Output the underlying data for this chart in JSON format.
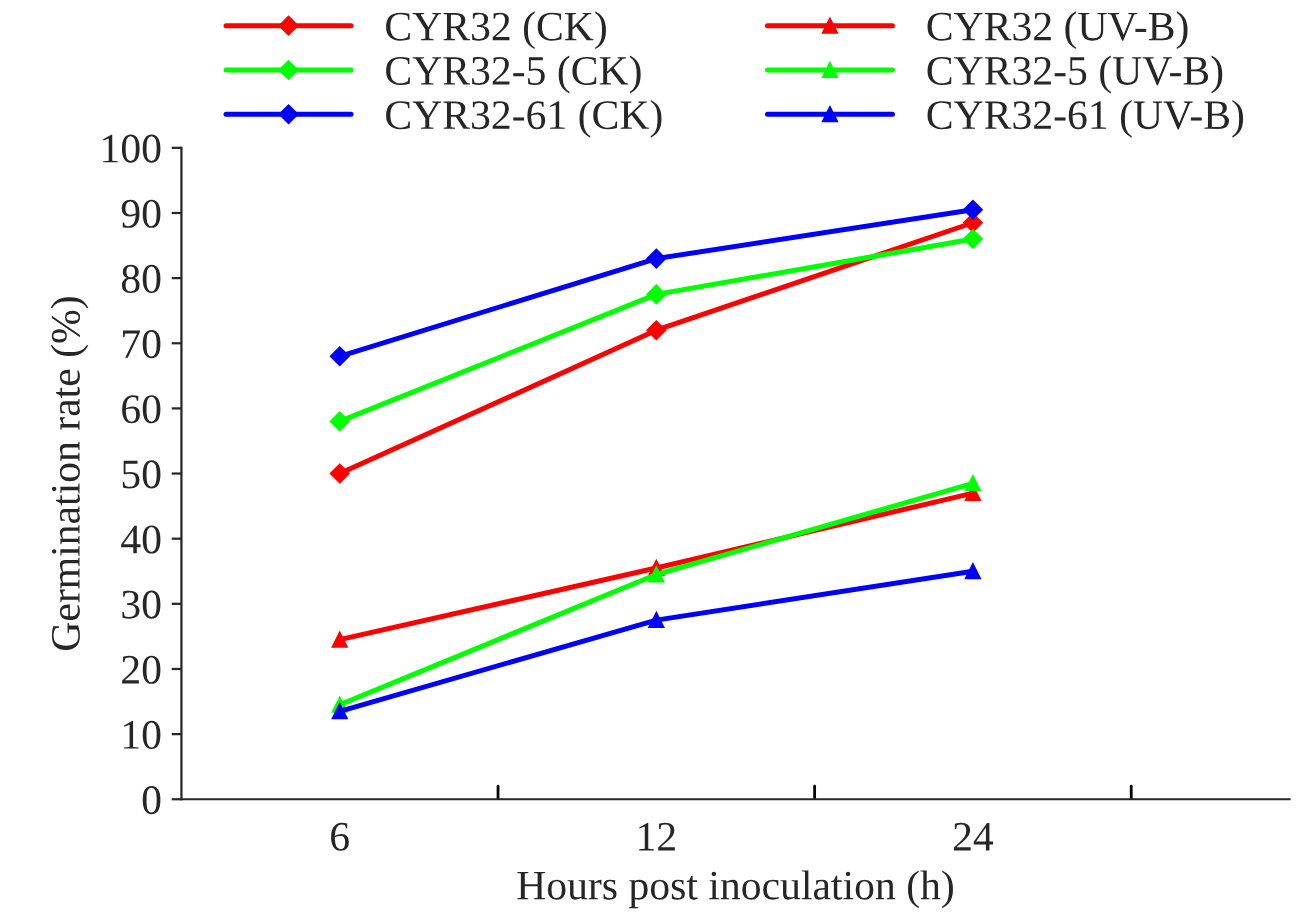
{
  "chart_data": {
    "type": "line",
    "xlabel": "Hours post inoculation (h)",
    "ylabel": "Germination rate (%)",
    "categories": [
      "6",
      "12",
      "24"
    ],
    "series": [
      {
        "name": "CYR32 (CK)",
        "color": "#ff0000",
        "marker": "diamond",
        "values": [
          50,
          72,
          88.5
        ]
      },
      {
        "name": "CYR32 (UV-B)",
        "color": "#ff0000",
        "marker": "triangle",
        "values": [
          24.5,
          35.5,
          47
        ]
      },
      {
        "name": "CYR32-5 (CK)",
        "color": "#00ff00",
        "marker": "diamond",
        "values": [
          58,
          77.5,
          86
        ]
      },
      {
        "name": "CYR32-5 (UV-B)",
        "color": "#00ff00",
        "marker": "triangle",
        "values": [
          14.5,
          34.5,
          48.5
        ]
      },
      {
        "name": "CYR32-61 (CK)",
        "color": "#0000ff",
        "marker": "diamond",
        "values": [
          68,
          83,
          90.5
        ]
      },
      {
        "name": "CYR32-61 (UV-B)",
        "color": "#0000ff",
        "marker": "triangle",
        "values": [
          13.5,
          27.5,
          35
        ]
      }
    ],
    "ylim": [
      0,
      100
    ],
    "yticks": [
      0,
      10,
      20,
      30,
      40,
      50,
      60,
      70,
      80,
      90,
      100
    ],
    "grid": false,
    "legend": "top"
  }
}
